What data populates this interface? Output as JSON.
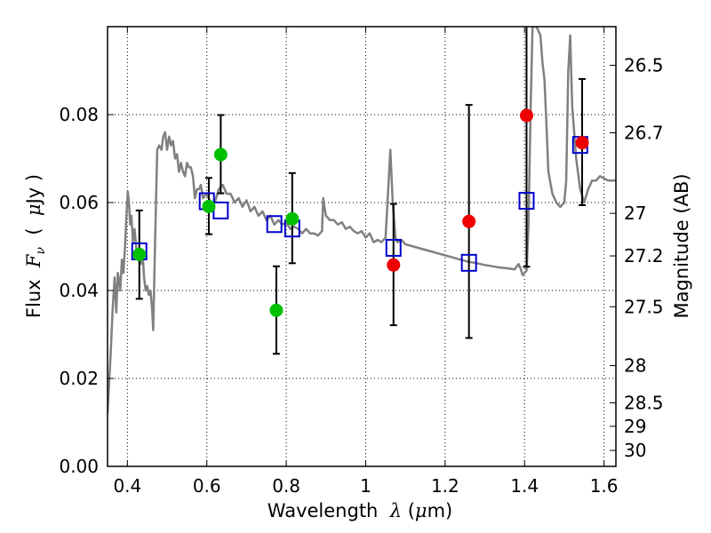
{
  "chart_data": {
    "type": "scatter",
    "xlabel": "Wavelength  λ (μm)",
    "ylabel": "Flux  Fν  ( μJy )",
    "y2label": "Magnitude (AB)",
    "xlim": [
      0.35,
      1.63
    ],
    "ylim": [
      0.0,
      0.1
    ],
    "grid": true,
    "x_ticks": [
      {
        "value": 0.4,
        "label": "0.4"
      },
      {
        "value": 0.6,
        "label": "0.6"
      },
      {
        "value": 0.8,
        "label": "0.8"
      },
      {
        "value": 1.0,
        "label": "1"
      },
      {
        "value": 1.2,
        "label": "1.2"
      },
      {
        "value": 1.4,
        "label": "1.4"
      },
      {
        "value": 1.6,
        "label": "1.6"
      }
    ],
    "y_ticks": [
      {
        "value": 0.0,
        "label": "0.00"
      },
      {
        "value": 0.02,
        "label": "0.02"
      },
      {
        "value": 0.04,
        "label": "0.04"
      },
      {
        "value": 0.06,
        "label": "0.06"
      },
      {
        "value": 0.08,
        "label": "0.08"
      }
    ],
    "y2_ticks": [
      {
        "value": 26.5,
        "label": "26.5"
      },
      {
        "value": 26.7,
        "label": "26.7"
      },
      {
        "value": 27.0,
        "label": "27"
      },
      {
        "value": 27.2,
        "label": "27.2"
      },
      {
        "value": 27.5,
        "label": "27.5"
      },
      {
        "value": 28.0,
        "label": "28"
      },
      {
        "value": 28.5,
        "label": "28.5"
      },
      {
        "value": 29.0,
        "label": "29"
      },
      {
        "value": 30.0,
        "label": "30"
      }
    ],
    "colors": {
      "model": "#808080",
      "model_photometry": "#0000cc",
      "optical_points": "#00c000",
      "nir_points": "#ee0000",
      "error_bars": "#000000"
    },
    "series": [
      {
        "kind": "line",
        "role": "model",
        "points": [
          [
            0.35,
            0.012
          ],
          [
            0.358,
            0.026
          ],
          [
            0.363,
            0.036
          ],
          [
            0.368,
            0.043
          ],
          [
            0.372,
            0.035
          ],
          [
            0.376,
            0.044
          ],
          [
            0.382,
            0.04
          ],
          [
            0.386,
            0.047
          ],
          [
            0.39,
            0.044
          ],
          [
            0.394,
            0.05
          ],
          [
            0.398,
            0.058
          ],
          [
            0.401,
            0.0625
          ],
          [
            0.404,
            0.06
          ],
          [
            0.407,
            0.055
          ],
          [
            0.41,
            0.057
          ],
          [
            0.414,
            0.051
          ],
          [
            0.418,
            0.054
          ],
          [
            0.422,
            0.05
          ],
          [
            0.426,
            0.047
          ],
          [
            0.43,
            0.048
          ],
          [
            0.434,
            0.046
          ],
          [
            0.438,
            0.049
          ],
          [
            0.442,
            0.043
          ],
          [
            0.446,
            0.04
          ],
          [
            0.45,
            0.041
          ],
          [
            0.454,
            0.039
          ],
          [
            0.458,
            0.04
          ],
          [
            0.462,
            0.036
          ],
          [
            0.465,
            0.031
          ],
          [
            0.47,
            0.052
          ],
          [
            0.475,
            0.072
          ],
          [
            0.48,
            0.073
          ],
          [
            0.486,
            0.072
          ],
          [
            0.49,
            0.075
          ],
          [
            0.495,
            0.076
          ],
          [
            0.5,
            0.072
          ],
          [
            0.505,
            0.075
          ],
          [
            0.51,
            0.073
          ],
          [
            0.515,
            0.074
          ],
          [
            0.52,
            0.07
          ],
          [
            0.525,
            0.071
          ],
          [
            0.53,
            0.067
          ],
          [
            0.535,
            0.069
          ],
          [
            0.54,
            0.067
          ],
          [
            0.545,
            0.066
          ],
          [
            0.55,
            0.069
          ],
          [
            0.555,
            0.068
          ],
          [
            0.56,
            0.068
          ],
          [
            0.565,
            0.066
          ],
          [
            0.57,
            0.061
          ],
          [
            0.575,
            0.063
          ],
          [
            0.58,
            0.063
          ],
          [
            0.585,
            0.064
          ],
          [
            0.59,
            0.061
          ],
          [
            0.6,
            0.062
          ],
          [
            0.61,
            0.06
          ],
          [
            0.62,
            0.06
          ],
          [
            0.63,
            0.063
          ],
          [
            0.64,
            0.064
          ],
          [
            0.65,
            0.062
          ],
          [
            0.66,
            0.062
          ],
          [
            0.67,
            0.06
          ],
          [
            0.68,
            0.061
          ],
          [
            0.69,
            0.059
          ],
          [
            0.7,
            0.0605
          ],
          [
            0.71,
            0.058
          ],
          [
            0.72,
            0.059
          ],
          [
            0.73,
            0.057
          ],
          [
            0.74,
            0.058
          ],
          [
            0.75,
            0.056
          ],
          [
            0.76,
            0.057
          ],
          [
            0.77,
            0.055
          ],
          [
            0.78,
            0.056
          ],
          [
            0.79,
            0.055
          ],
          [
            0.8,
            0.0555
          ],
          [
            0.81,
            0.054
          ],
          [
            0.82,
            0.0545
          ],
          [
            0.83,
            0.054
          ],
          [
            0.84,
            0.053
          ],
          [
            0.85,
            0.054
          ],
          [
            0.86,
            0.053
          ],
          [
            0.87,
            0.053
          ],
          [
            0.88,
            0.0525
          ],
          [
            0.89,
            0.0535
          ],
          [
            0.893,
            0.061
          ],
          [
            0.896,
            0.059
          ],
          [
            0.9,
            0.057
          ],
          [
            0.91,
            0.056
          ],
          [
            0.92,
            0.056
          ],
          [
            0.93,
            0.055
          ],
          [
            0.94,
            0.0555
          ],
          [
            0.95,
            0.054
          ],
          [
            0.96,
            0.0545
          ],
          [
            0.97,
            0.0535
          ],
          [
            0.98,
            0.053
          ],
          [
            0.99,
            0.0535
          ],
          [
            1.0,
            0.052
          ],
          [
            1.01,
            0.053
          ],
          [
            1.02,
            0.051
          ],
          [
            1.03,
            0.0515
          ],
          [
            1.04,
            0.051
          ],
          [
            1.05,
            0.052
          ],
          [
            1.055,
            0.06
          ],
          [
            1.062,
            0.072
          ],
          [
            1.068,
            0.06
          ],
          [
            1.075,
            0.052
          ],
          [
            1.08,
            0.051
          ],
          [
            1.09,
            0.0515
          ],
          [
            1.1,
            0.0505
          ],
          [
            1.12,
            0.05
          ],
          [
            1.14,
            0.0495
          ],
          [
            1.16,
            0.049
          ],
          [
            1.18,
            0.0485
          ],
          [
            1.2,
            0.048
          ],
          [
            1.22,
            0.0475
          ],
          [
            1.24,
            0.047
          ],
          [
            1.26,
            0.0465
          ],
          [
            1.28,
            0.0462
          ],
          [
            1.3,
            0.0458
          ],
          [
            1.32,
            0.0455
          ],
          [
            1.34,
            0.0452
          ],
          [
            1.36,
            0.045
          ],
          [
            1.375,
            0.0448
          ],
          [
            1.385,
            0.046
          ],
          [
            1.39,
            0.045
          ],
          [
            1.395,
            0.0435
          ],
          [
            1.4,
            0.044
          ],
          [
            1.405,
            0.0445
          ],
          [
            1.41,
            0.055
          ],
          [
            1.415,
            0.08
          ],
          [
            1.42,
            0.1
          ],
          [
            1.43,
            0.1
          ],
          [
            1.44,
            0.098
          ],
          [
            1.445,
            0.092
          ],
          [
            1.45,
            0.088
          ],
          [
            1.455,
            0.078
          ],
          [
            1.46,
            0.067
          ],
          [
            1.47,
            0.062
          ],
          [
            1.48,
            0.06
          ],
          [
            1.49,
            0.059
          ],
          [
            1.5,
            0.06
          ],
          [
            1.505,
            0.065
          ],
          [
            1.51,
            0.09
          ],
          [
            1.515,
            0.098
          ],
          [
            1.52,
            0.082
          ],
          [
            1.53,
            0.07
          ],
          [
            1.54,
            0.063
          ],
          [
            1.55,
            0.06
          ],
          [
            1.56,
            0.063
          ],
          [
            1.57,
            0.065
          ],
          [
            1.58,
            0.065
          ],
          [
            1.59,
            0.066
          ],
          [
            1.6,
            0.0655
          ],
          [
            1.61,
            0.065
          ],
          [
            1.63,
            0.065
          ]
        ]
      },
      {
        "kind": "scatter",
        "role": "model_photometry",
        "marker": "open-square",
        "points": [
          [
            0.43,
            0.0489
          ],
          [
            0.6,
            0.0603
          ],
          [
            0.635,
            0.0582
          ],
          [
            0.77,
            0.0551
          ],
          [
            0.815,
            0.0541
          ],
          [
            1.07,
            0.0497
          ],
          [
            1.26,
            0.0463
          ],
          [
            1.405,
            0.0604
          ],
          [
            1.54,
            0.0731
          ]
        ]
      },
      {
        "kind": "scatter",
        "role": "optical_points",
        "marker": "filled-circle",
        "points": [
          {
            "x": 0.43,
            "y": 0.0482,
            "lo": 0.0381,
            "hi": 0.0582
          },
          {
            "x": 0.605,
            "y": 0.0591,
            "lo": 0.0528,
            "hi": 0.0656
          },
          {
            "x": 0.635,
            "y": 0.0709,
            "lo": 0.0621,
            "hi": 0.0799
          },
          {
            "x": 0.775,
            "y": 0.0355,
            "lo": 0.0256,
            "hi": 0.0455
          },
          {
            "x": 0.815,
            "y": 0.0563,
            "lo": 0.0462,
            "hi": 0.0667
          }
        ]
      },
      {
        "kind": "scatter",
        "role": "nir_points",
        "marker": "filled-circle",
        "points": [
          {
            "x": 1.07,
            "y": 0.0458,
            "lo": 0.0321,
            "hi": 0.0597
          },
          {
            "x": 1.26,
            "y": 0.0557,
            "lo": 0.0292,
            "hi": 0.0822
          },
          {
            "x": 1.405,
            "y": 0.0798,
            "lo": 0.0454,
            "hi": 0.1
          },
          {
            "x": 1.545,
            "y": 0.0736,
            "lo": 0.0594,
            "hi": 0.0881
          }
        ]
      }
    ]
  }
}
